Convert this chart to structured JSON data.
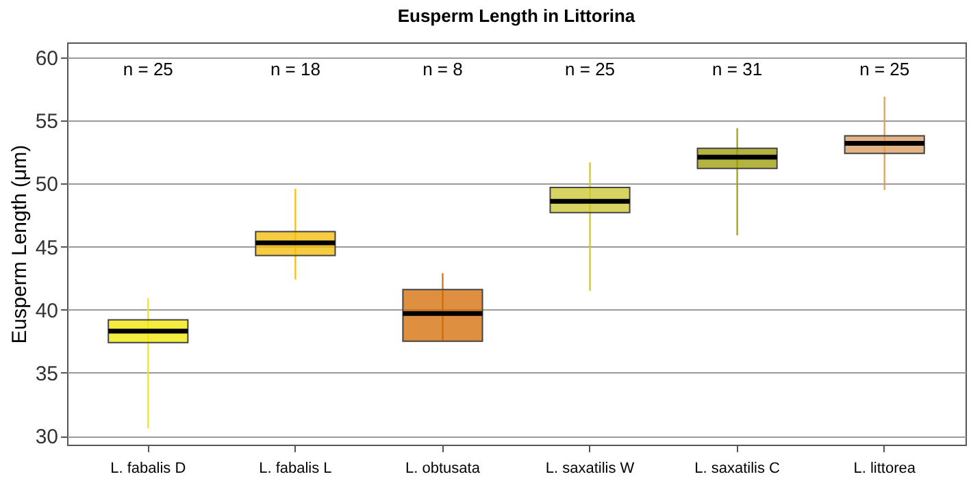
{
  "chart_data": {
    "type": "box",
    "title": "Eusperm Length in Littorina",
    "ylabel": "Eusperm Length (μm)",
    "categories": [
      "L. fabalis D",
      "L. fabalis L",
      "L. obtusata",
      "L. saxatilis W",
      "L. saxatilis C",
      "L. littorea"
    ],
    "colors": [
      "#f2e600",
      "#f4bb00",
      "#d46a00",
      "#c9c52e",
      "#9c9a00",
      "#d99a5c"
    ],
    "boxes": [
      {
        "low": 30.6,
        "q1": 37.4,
        "median": 38.3,
        "q3": 39.2,
        "high": 40.9
      },
      {
        "low": 42.4,
        "q1": 44.3,
        "median": 45.3,
        "q3": 46.2,
        "high": 49.6
      },
      {
        "low": 37.5,
        "q1": 37.5,
        "median": 39.7,
        "q3": 41.6,
        "high": 42.9
      },
      {
        "low": 41.5,
        "q1": 47.7,
        "median": 48.6,
        "q3": 49.7,
        "high": 51.7
      },
      {
        "low": 45.9,
        "q1": 51.2,
        "median": 52.1,
        "q3": 52.8,
        "high": 54.4
      },
      {
        "low": 49.5,
        "q1": 52.4,
        "median": 53.2,
        "q3": 53.8,
        "high": 56.9
      }
    ],
    "annotations": [
      "n = 25",
      "n = 18",
      "n = 8",
      "n = 25",
      "n = 31",
      "n = 25"
    ],
    "ylim": [
      29.3,
      61.2
    ],
    "yticks": [
      30,
      35,
      40,
      45,
      50,
      55,
      60
    ],
    "grid": "y"
  }
}
